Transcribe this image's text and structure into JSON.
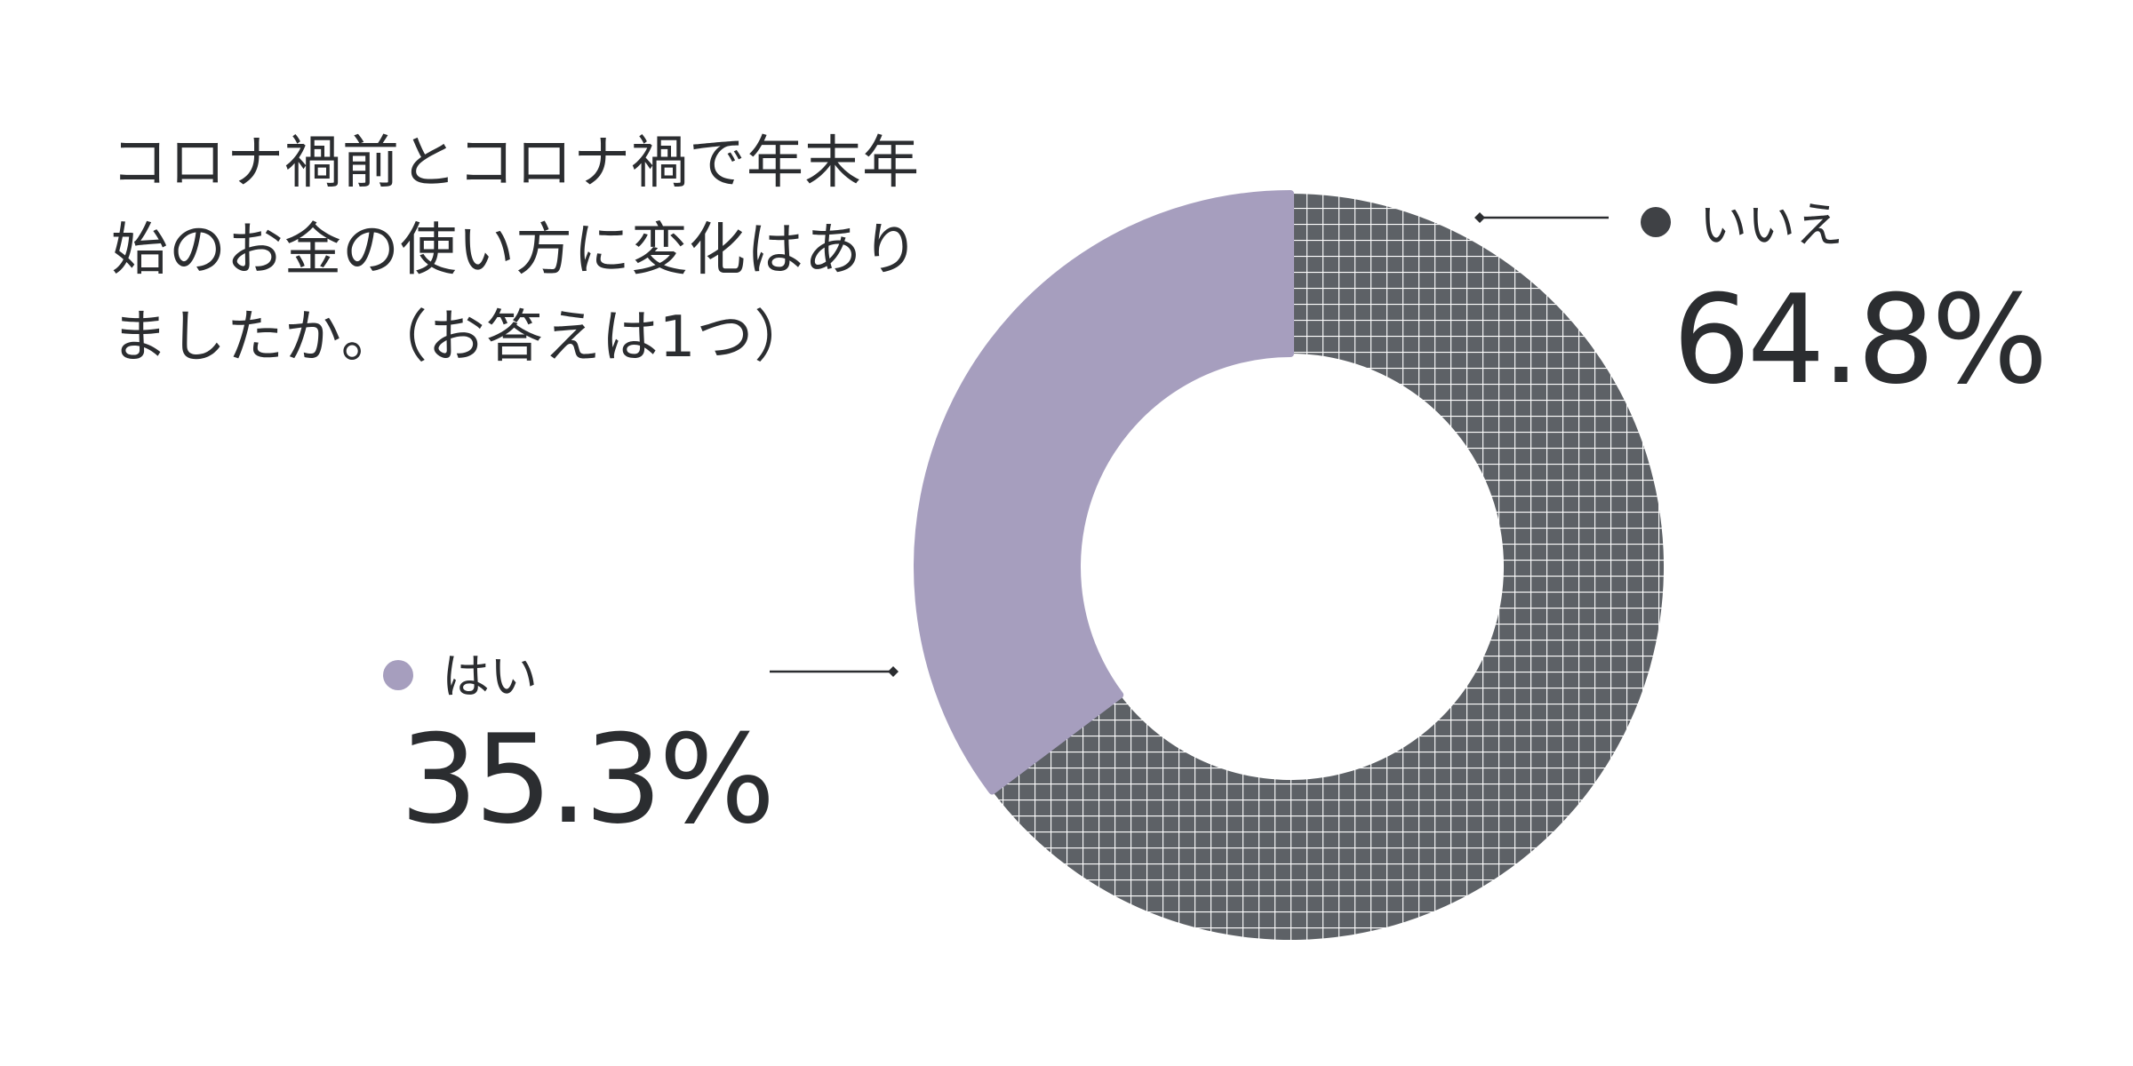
{
  "chart_data": {
    "type": "pie",
    "variant": "donut",
    "title": "コロナ禍前とコロナ禍で年末年始のお金の使い方に変化はありましたか。（お答えは1つ）",
    "slices": [
      {
        "label": "いいえ",
        "value": 64.8,
        "value_text": "64.8%",
        "color": "#5d6166",
        "pattern": "grid",
        "marker_color": "#3f4145"
      },
      {
        "label": "はい",
        "value": 35.3,
        "value_text": "35.3%",
        "color": "#a69ebe",
        "pattern": "solid",
        "marker_color": "#a69ebe"
      }
    ],
    "start_angle_deg": 0,
    "direction": "clockwise",
    "legend": "callouts beside slices"
  }
}
